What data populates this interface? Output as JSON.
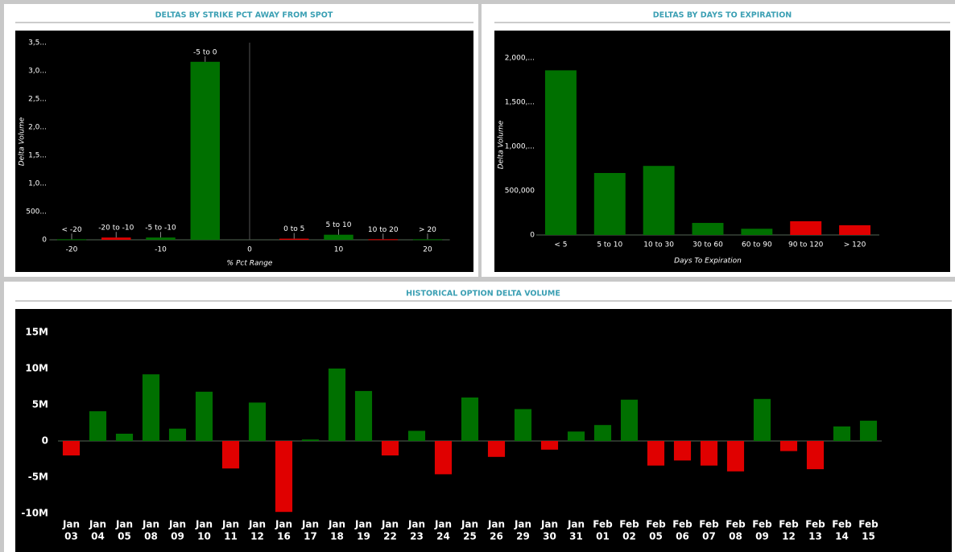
{
  "chart_data": [
    {
      "type": "bar",
      "title": "DELTAS BY STRIKE PCT AWAY FROM SPOT",
      "ylabel": "Delta Volume",
      "xlabel": "% Pct Range",
      "x": [
        -20,
        -15,
        -10,
        -5,
        5,
        10,
        15,
        20
      ],
      "labels": [
        "< -20",
        "-20 to -10",
        "-5 to -10",
        "-5 to 0",
        "0 to 5",
        "5 to 10",
        "10 to 20",
        "> 20"
      ],
      "values": [
        10000,
        40000,
        40000,
        3160000,
        20000,
        90000,
        10000,
        10000
      ],
      "colors": [
        "#007000",
        "#e00000",
        "#007000",
        "#007000",
        "#e00000",
        "#007000",
        "#e00000",
        "#007000"
      ],
      "xlim": [
        -22.5,
        22.5
      ],
      "xticks": [
        -20,
        -10,
        0,
        10,
        20
      ],
      "ylim": [
        0,
        3500000
      ],
      "yticks": [
        0,
        {
          "value": 500000,
          "label": "500..."
        },
        {
          "value": 1000000,
          "label": "1,0..."
        },
        {
          "value": 1500000,
          "label": "1,5..."
        },
        {
          "value": 2000000,
          "label": "2,0..."
        },
        {
          "value": 2500000,
          "label": "2,5..."
        },
        {
          "value": 3000000,
          "label": "3,0..."
        },
        {
          "value": 3500000,
          "label": "3,5..."
        }
      ]
    },
    {
      "type": "bar",
      "title": "DELTAS BY DAYS TO EXPIRATION",
      "ylabel": "Delta Volume",
      "xlabel": "Days To Expiration",
      "categories": [
        "< 5",
        "5 to 10",
        "10 to 30",
        "30 to 60",
        "60 to 90",
        "90 to 120",
        "> 120"
      ],
      "values": [
        1860000,
        700000,
        780000,
        136000,
        70000,
        155000,
        110000
      ],
      "colors": [
        "#007000",
        "#007000",
        "#007000",
        "#007000",
        "#007000",
        "#e00000",
        "#e00000"
      ],
      "ylim": [
        0,
        2200000
      ],
      "yticks": [
        0,
        {
          "value": 500000,
          "label": "500,000"
        },
        {
          "value": 1000000,
          "label": "1,000,..."
        },
        {
          "value": 1500000,
          "label": "1,500,..."
        },
        {
          "value": 2000000,
          "label": "2,000,..."
        }
      ]
    },
    {
      "type": "bar",
      "title": "HISTORICAL OPTION DELTA VOLUME",
      "categories": [
        [
          "Jan",
          "03"
        ],
        [
          "Jan",
          "04"
        ],
        [
          "Jan",
          "05"
        ],
        [
          "Jan",
          "08"
        ],
        [
          "Jan",
          "09"
        ],
        [
          "Jan",
          "10"
        ],
        [
          "Jan",
          "11"
        ],
        [
          "Jan",
          "12"
        ],
        [
          "Jan",
          "16"
        ],
        [
          "Jan",
          "17"
        ],
        [
          "Jan",
          "18"
        ],
        [
          "Jan",
          "19"
        ],
        [
          "Jan",
          "22"
        ],
        [
          "Jan",
          "23"
        ],
        [
          "Jan",
          "24"
        ],
        [
          "Jan",
          "25"
        ],
        [
          "Jan",
          "26"
        ],
        [
          "Jan",
          "29"
        ],
        [
          "Jan",
          "30"
        ],
        [
          "Jan",
          "31"
        ],
        [
          "Feb",
          "01"
        ],
        [
          "Feb",
          "02"
        ],
        [
          "Feb",
          "05"
        ],
        [
          "Feb",
          "06"
        ],
        [
          "Feb",
          "07"
        ],
        [
          "Feb",
          "08"
        ],
        [
          "Feb",
          "09"
        ],
        [
          "Feb",
          "12"
        ],
        [
          "Feb",
          "13"
        ],
        [
          "Feb",
          "14"
        ],
        [
          "Feb",
          "15"
        ]
      ],
      "values": [
        -2000000,
        4100000,
        1000000,
        9200000,
        1700000,
        6800000,
        -3800000,
        5300000,
        -9800000,
        200000,
        10000000,
        6900000,
        -2000000,
        1400000,
        -4600000,
        6000000,
        -2200000,
        4400000,
        -1200000,
        1300000,
        2200000,
        5700000,
        -3400000,
        -2700000,
        -3400000,
        -4200000,
        5800000,
        -1400000,
        -3900000,
        2000000,
        2800000
      ],
      "positive_color": "#007000",
      "negative_color": "#e00000",
      "ylim": [
        -12000000,
        17000000
      ],
      "yticks": [
        {
          "value": -10000000,
          "label": "-10M"
        },
        {
          "value": -5000000,
          "label": "-5M"
        },
        0,
        {
          "value": 5000000,
          "label": "5M"
        },
        {
          "value": 10000000,
          "label": "10M"
        },
        {
          "value": 15000000,
          "label": "15M"
        }
      ]
    }
  ]
}
